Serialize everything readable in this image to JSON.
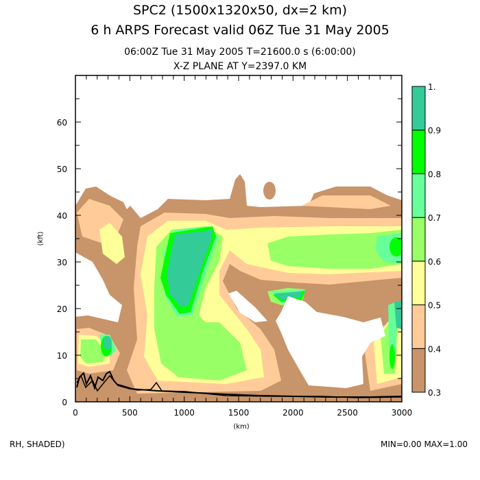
{
  "header": {
    "title1": "SPC2 (1500x1320x50, dx=2 km)",
    "title2": "6 h ARPS Forecast valid 06Z Tue 31 May 2005",
    "subtitle1": "06:00Z Tue 31 May 2005      T=21600.0 s (6:00:00)",
    "subtitle2": "X-Z PLANE AT Y=2397.0 KM"
  },
  "footer": {
    "left": "RH, SHADED)",
    "right": "MIN=0.00 MAX=1.00"
  },
  "chart_data": {
    "type": "heatmap",
    "title": "X-Z PLANE AT Y=2397.0 KM",
    "xlabel": "(km)",
    "ylabel": "(kft)",
    "xlim": [
      0,
      3000
    ],
    "ylim": [
      0,
      70
    ],
    "xticks": [
      0,
      500,
      1000,
      1500,
      2000,
      2500,
      3000
    ],
    "yticks": [
      0,
      10,
      20,
      30,
      40,
      50,
      60
    ],
    "field": "RH",
    "min": 0.0,
    "max": 1.0,
    "colorbar": {
      "levels": [
        0.3,
        0.4,
        0.5,
        0.6,
        0.7,
        0.8,
        0.9,
        1.0
      ],
      "labels": [
        "0.3",
        "0.4",
        "0.5",
        "0.6",
        "0.7",
        "0.8",
        "0.9",
        "1."
      ],
      "colors": [
        "#C8946A",
        "#FFCC99",
        "#FFFF99",
        "#99FF66",
        "#66FF99",
        "#00FF00",
        "#33CC99"
      ]
    }
  }
}
